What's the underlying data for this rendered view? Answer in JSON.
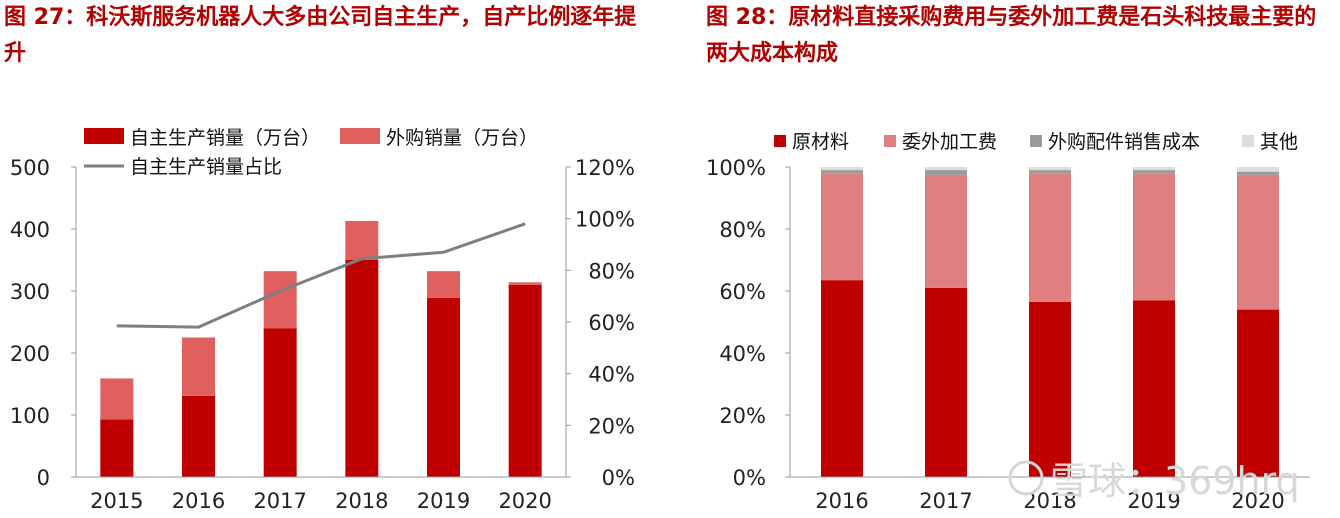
{
  "charts": [
    {
      "title": "图 27：科沃斯服务机器人大多由公司自主生产，自产比例逐年提升"
    },
    {
      "title": "图 28：原材料直接采购费用与委外加工费是石头科技最主要的两大成本构成"
    }
  ],
  "chart_data": [
    {
      "type": "bar",
      "stacked": true,
      "categories": [
        "2015",
        "2016",
        "2017",
        "2018",
        "2019",
        "2020"
      ],
      "series": [
        {
          "name": "自主生产销量（万台）",
          "kind": "bar",
          "axis": "left",
          "color": "#c00000",
          "values": [
            93,
            131,
            240,
            350,
            289,
            310
          ]
        },
        {
          "name": "外购销量（万台）",
          "kind": "bar",
          "axis": "left",
          "color": "#e06060",
          "values": [
            66,
            94,
            92,
            63,
            43,
            4
          ]
        },
        {
          "name": "自主生产销量占比",
          "kind": "line",
          "axis": "right",
          "color": "#7f7f7f",
          "values": [
            58.5,
            58,
            72,
            84.5,
            87,
            98
          ]
        }
      ],
      "ylim": [
        0,
        500
      ],
      "yticks": [
        "0",
        "100",
        "200",
        "300",
        "400",
        "500"
      ],
      "y2lim": [
        0,
        120
      ],
      "y2ticks": [
        "0%",
        "20%",
        "40%",
        "60%",
        "80%",
        "100%",
        "120%"
      ],
      "legend": "top",
      "grid": false
    },
    {
      "type": "bar",
      "stacked": true,
      "categories": [
        "2016",
        "2017",
        "2018",
        "2019",
        "2020"
      ],
      "series": [
        {
          "name": "原材料",
          "color": "#c00000",
          "values": [
            63.5,
            61,
            56.5,
            57,
            54
          ]
        },
        {
          "name": "委外加工费",
          "color": "#e07f7f",
          "values": [
            34.5,
            36.5,
            41.5,
            41,
            43.5
          ]
        },
        {
          "name": "外购配件销售成本",
          "color": "#9a9a9a",
          "values": [
            1,
            1.5,
            1,
            1,
            1
          ]
        },
        {
          "name": "其他",
          "color": "#dcdcdc",
          "values": [
            1,
            1,
            1,
            1,
            1.5
          ]
        }
      ],
      "ylim": [
        0,
        100
      ],
      "yticks": [
        "0%",
        "20%",
        "40%",
        "60%",
        "80%",
        "100%"
      ],
      "legend": "top",
      "grid": false
    }
  ],
  "watermark": "雪球：369hrq"
}
